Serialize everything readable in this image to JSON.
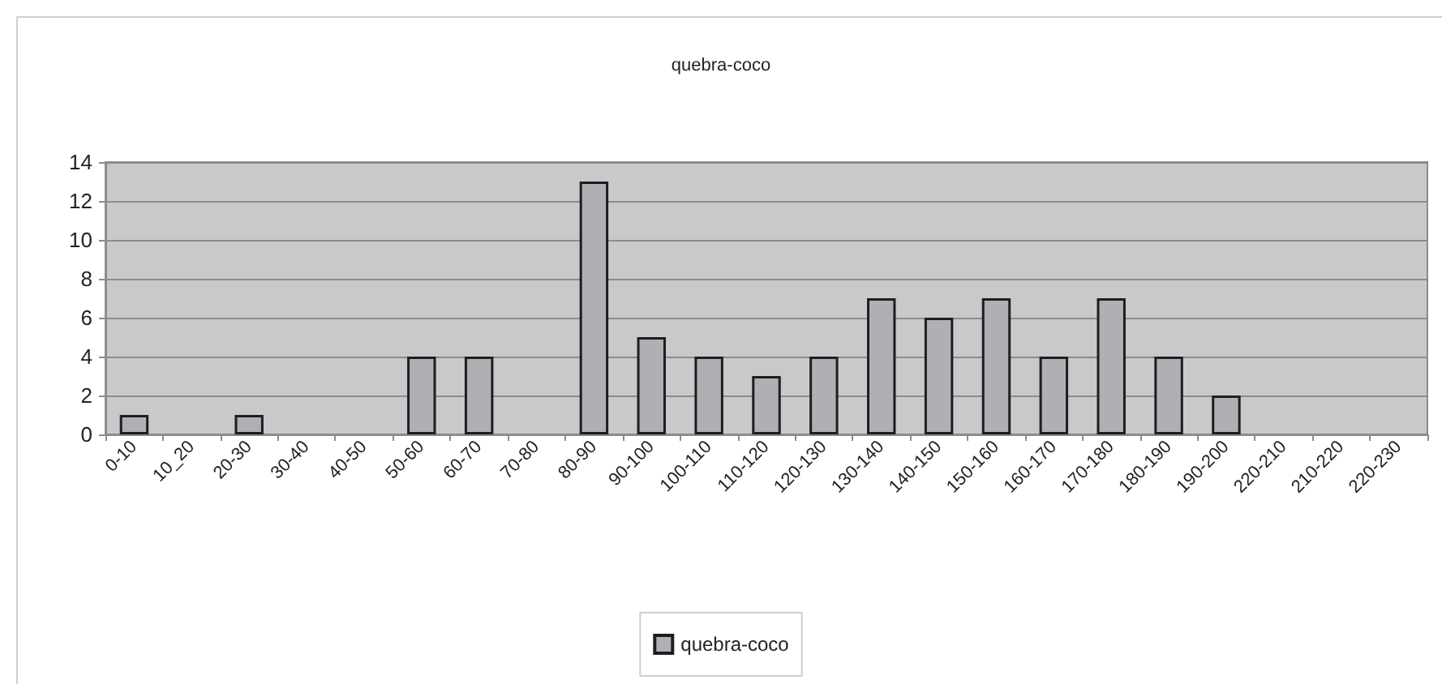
{
  "chart_data": {
    "type": "bar",
    "title": "quebra-coco",
    "categories": [
      "0-10",
      "10_20",
      "20-30",
      "30-40",
      "40-50",
      "50-60",
      "60-70",
      "70-80",
      "80-90",
      "90-100",
      "100-110",
      "110-120",
      "120-130",
      "130-140",
      "140-150",
      "150-160",
      "160-170",
      "170-180",
      "180-190",
      "190-200",
      "220-210",
      "210-220",
      "220-230"
    ],
    "series": [
      {
        "name": "quebra-coco",
        "color": "#b0b0b4",
        "values": [
          1,
          0,
          1,
          0,
          0,
          4,
          4,
          0,
          13,
          5,
          4,
          3,
          4,
          7,
          6,
          7,
          4,
          7,
          4,
          2,
          0,
          0,
          0
        ]
      }
    ],
    "ylim": [
      0,
      14
    ],
    "yticks": [
      0,
      2,
      4,
      6,
      8,
      10,
      12,
      14
    ],
    "grid": "y",
    "legend": "bottom"
  }
}
